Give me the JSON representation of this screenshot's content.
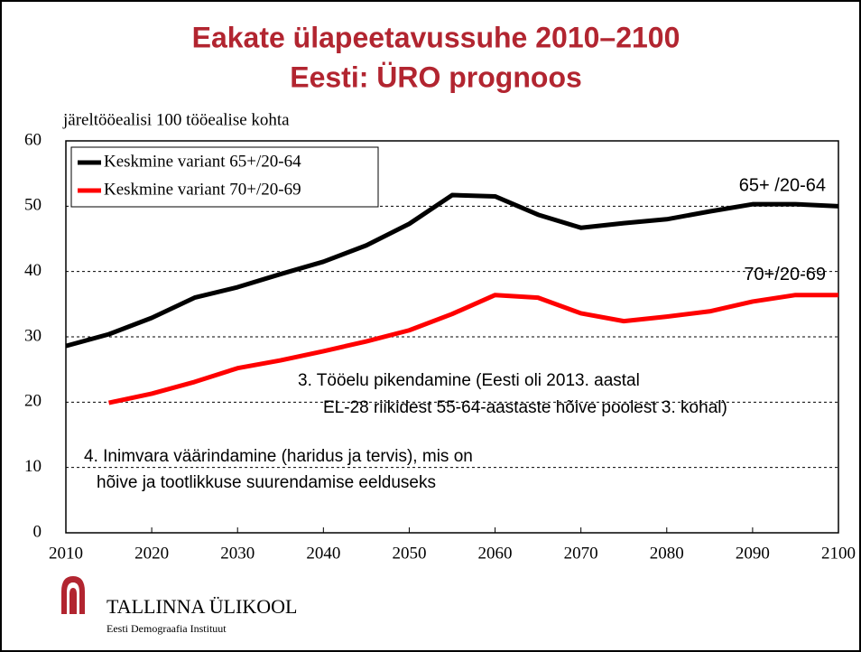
{
  "chart_data": {
    "type": "line",
    "title": [
      "Eakate ülapeetavussuhe 2010–2100",
      "Eesti: ÜRO prognoos"
    ],
    "y_label": "järeltööealisi 100 tööealise kohta",
    "x": [
      2010,
      2015,
      2020,
      2025,
      2030,
      2035,
      2040,
      2045,
      2050,
      2055,
      2060,
      2065,
      2070,
      2075,
      2080,
      2085,
      2090,
      2095,
      2100
    ],
    "series": [
      {
        "name": "Keskmine variant 65+/20-64",
        "color": "#000000",
        "end_label": "65+ /20-64",
        "values": [
          28.6,
          30.4,
          32.9,
          36.0,
          37.6,
          39.6,
          41.5,
          44.0,
          47.3,
          51.7,
          51.5,
          48.7,
          46.7,
          47.4,
          48.0,
          49.2,
          50.3,
          50.3,
          50.0
        ]
      },
      {
        "name": "Keskmine variant 70+/20-69",
        "color": "#ff0000",
        "end_label": "70+/20-69",
        "values": [
          null,
          19.9,
          21.3,
          23.1,
          25.2,
          26.4,
          27.8,
          29.3,
          31.0,
          33.5,
          36.4,
          36.0,
          33.6,
          32.4,
          33.1,
          33.9,
          35.4,
          36.4,
          36.4
        ]
      }
    ],
    "xlim": [
      2010,
      2100
    ],
    "xticks": [
      2010,
      2020,
      2030,
      2040,
      2050,
      2060,
      2070,
      2080,
      2090,
      2100
    ],
    "ylim": [
      0,
      60
    ],
    "yticks": [
      0,
      10,
      20,
      30,
      40,
      50,
      60
    ],
    "grid": true,
    "legend": "upper left",
    "annotations": [
      [
        "3. Tööelu pikendamine (Eesti oli 2013. aastal",
        "EL-28 riikidest 55-64-aastaste hõive poolest 3. kohal)"
      ],
      [
        "4. Inimvara väärindamine (haridus ja tervis), mis on",
        "hõive ja tootlikkuse suurendamise eelduseks"
      ]
    ]
  },
  "logo": {
    "name": "TALLINNA ÜLIKOOL",
    "subtitle": "Eesti Demograafia Instituut"
  }
}
